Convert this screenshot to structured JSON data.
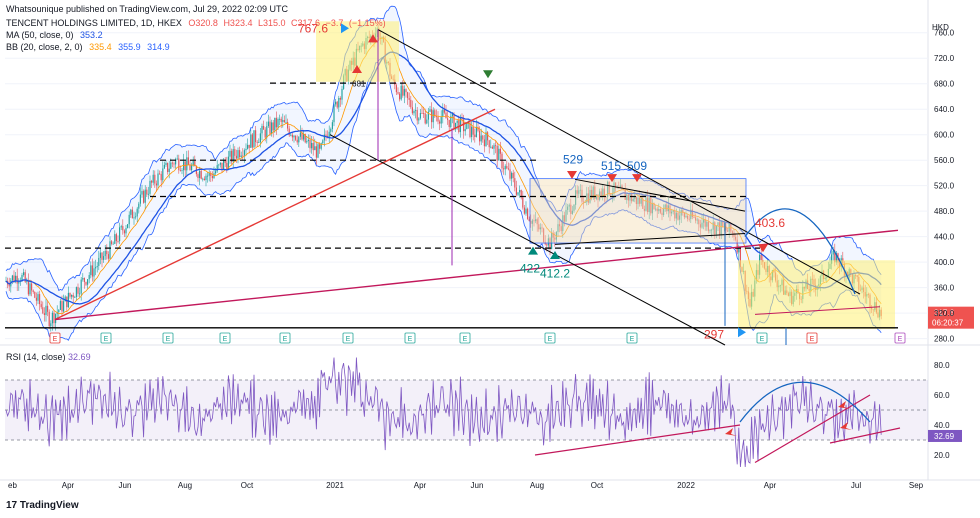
{
  "header": {
    "publisher": "Whatsounique published on TradingView.com, Jul 29, 2022 02:09 UTC"
  },
  "legend": {
    "symbol": "TENCENT HOLDINGS LIMITED, 1D, HKEX",
    "ohlc": [
      "O320.8",
      "H323.4",
      "L315.0",
      "C317.6",
      "−3.7",
      "(−1.15%)"
    ],
    "ma_label": "MA (50, close, 0)",
    "ma_value": "353.2",
    "bb_label": "BB (20, close, 2, 0)",
    "bb_values": [
      "335.4",
      "355.9",
      "314.9"
    ]
  },
  "rsi_legend": {
    "label": "RSI (14, close)",
    "value": "32.69"
  },
  "footer": {
    "brand": "TradingView"
  },
  "currency": "HKD",
  "price_badge": {
    "price": "317.6",
    "countdown": "06:20:37"
  },
  "annotations": [
    "767.6",
    "681",
    "529",
    "515",
    "509",
    "422",
    "412.2",
    "403.6",
    "297"
  ],
  "earnings_marker": "E",
  "colors": {
    "up": "#26a69a",
    "down": "#ef5350",
    "ma": "#1e53e5",
    "bb": "#2962ff",
    "rsi": "#7e57c2",
    "highlight": "#fff176",
    "trend": "#c2185b"
  },
  "chart_data": [
    {
      "type": "candlestick",
      "title": "TENCENT HOLDINGS LIMITED, 1D, HKEX",
      "x_ticks": [
        "eb",
        "Apr",
        "Jun",
        "Aug",
        "Oct",
        "2021",
        "Apr",
        "Jun",
        "Aug",
        "Oct",
        "2022",
        "Apr",
        "Jul",
        "Sep"
      ],
      "y_ticks": [
        280,
        320,
        360,
        400,
        440,
        480,
        520,
        560,
        600,
        640,
        680,
        720,
        760
      ],
      "ylim": [
        270,
        780
      ],
      "grid": true,
      "key_levels": [
        {
          "label": "767.6",
          "value": 767.6
        },
        {
          "label": "681",
          "value": 681
        },
        {
          "label": "529",
          "value": 529
        },
        {
          "label": "515",
          "value": 515
        },
        {
          "label": "509",
          "value": 509
        },
        {
          "label": "422",
          "value": 422
        },
        {
          "label": "412.2",
          "value": 412.2
        },
        {
          "label": "403.6",
          "value": 403.6
        },
        {
          "label": "297",
          "value": 297
        }
      ],
      "last_close": 317.6
    },
    {
      "type": "line",
      "title": "RSI (14, close)",
      "y_ticks": [
        20,
        40,
        60,
        80
      ],
      "ylim": [
        10,
        90
      ],
      "band": [
        30,
        70
      ],
      "last_value": 32.69
    }
  ]
}
